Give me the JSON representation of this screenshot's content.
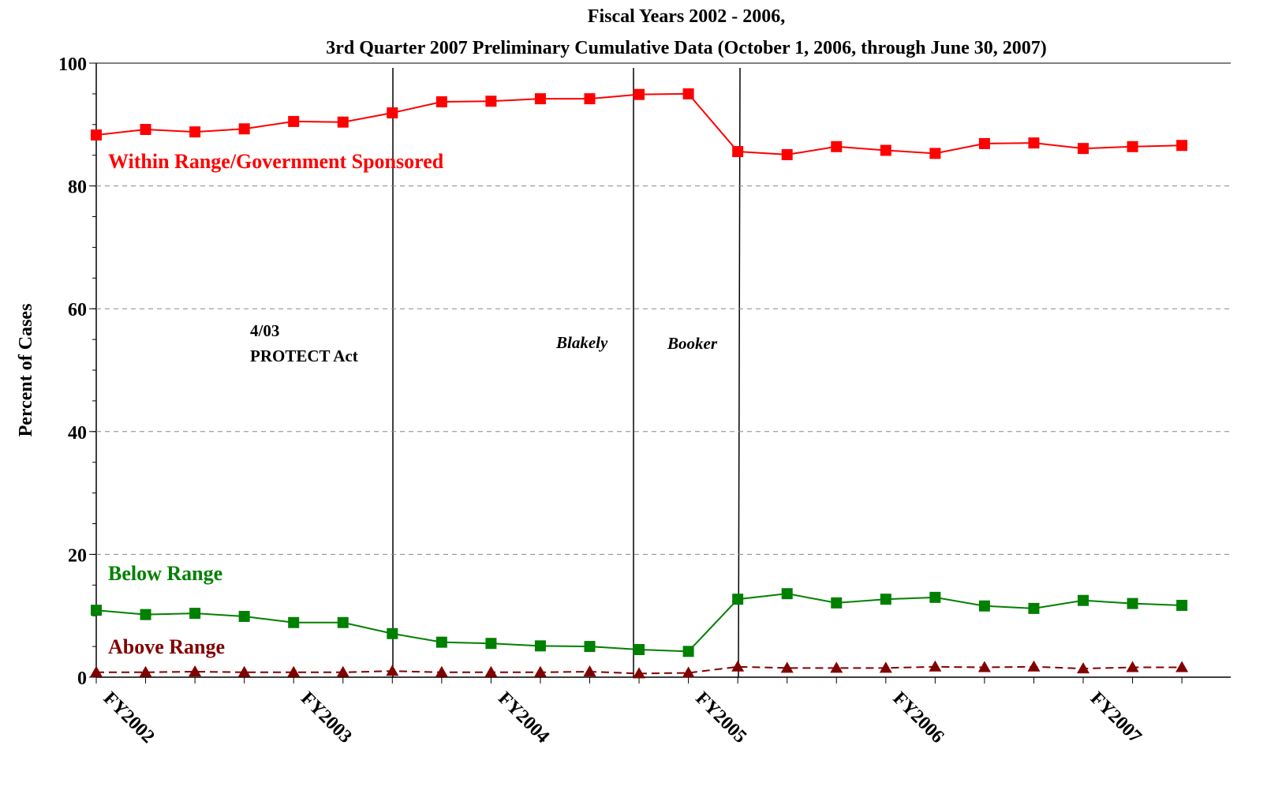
{
  "chart_data": {
    "type": "line",
    "title": [
      "Fiscal Years 2002 - 2006,",
      "3rd Quarter 2007 Preliminary Cumulative Data (October 1, 2006, through June 30, 2007)"
    ],
    "y_label": "Percent of Cases",
    "categories": [
      "FY2002",
      null,
      null,
      null,
      "FY2003",
      null,
      null,
      null,
      "FY2004",
      null,
      null,
      null,
      "FY2005",
      null,
      null,
      null,
      "FY2006",
      null,
      null,
      null,
      "FY2007",
      null,
      null
    ],
    "series": [
      {
        "name": "Within Range/Government Sponsored",
        "color": "#ff0000",
        "marker": "square",
        "dashed": false,
        "values": [
          88.3,
          89.2,
          88.8,
          89.3,
          90.5,
          90.4,
          91.9,
          93.7,
          93.8,
          94.2,
          94.2,
          94.9,
          95.0,
          85.6,
          85.1,
          86.4,
          85.8,
          85.3,
          86.9,
          87.0,
          86.1,
          86.4,
          86.6
        ]
      },
      {
        "name": "Below Range",
        "color": "#008000",
        "marker": "square",
        "dashed": false,
        "values": [
          10.9,
          10.2,
          10.4,
          9.9,
          8.9,
          8.9,
          7.1,
          5.7,
          5.5,
          5.1,
          5.0,
          4.5,
          4.2,
          12.7,
          13.6,
          12.1,
          12.7,
          13.0,
          11.6,
          11.2,
          12.5,
          12.0,
          11.7
        ]
      },
      {
        "name": "Above Range",
        "color": "#800000",
        "marker": "triangle",
        "dashed": true,
        "values": [
          0.8,
          0.8,
          0.9,
          0.8,
          0.8,
          0.8,
          1.0,
          0.8,
          0.8,
          0.8,
          0.9,
          0.6,
          0.7,
          1.7,
          1.5,
          1.5,
          1.5,
          1.7,
          1.6,
          1.7,
          1.4,
          1.6,
          1.6
        ]
      }
    ],
    "annotations": [
      "4/03",
      "PROTECT Act",
      "Blakely",
      "Booker"
    ],
    "ylim": [
      0,
      100
    ],
    "yticks": [
      0,
      20,
      40,
      60,
      80,
      100
    ],
    "grid": true
  }
}
